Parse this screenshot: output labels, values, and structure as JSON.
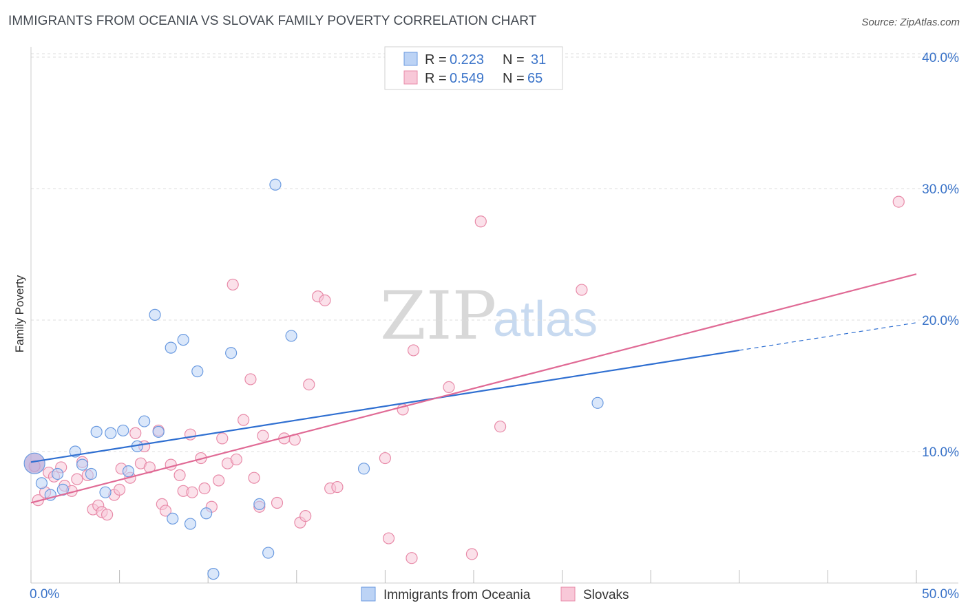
{
  "header": {
    "title": "IMMIGRANTS FROM OCEANIA VS SLOVAK FAMILY POVERTY CORRELATION CHART",
    "source": "Source: ZipAtlas.com"
  },
  "watermark": {
    "zip": "ZIP",
    "atlas": "atlas"
  },
  "legend": {
    "r_label": "R =",
    "n_label": "N =",
    "entries": [
      {
        "r": "0.223",
        "n": "31"
      },
      {
        "r": "0.549",
        "n": "65"
      }
    ]
  },
  "bottom_legend": [
    "Immigrants from Oceania",
    "Slovaks"
  ],
  "colors": {
    "blue_fill": "#bcd3f5",
    "blue_stroke": "#6a9ae0",
    "blue_line": "#2f6fd1",
    "pink_fill": "#f8c8d8",
    "pink_stroke": "#e88aa8",
    "pink_line": "#e06a95",
    "grid": "#dddddd",
    "tick_text": "#3b74c9"
  },
  "chart_data": {
    "type": "scatter",
    "title": "IMMIGRANTS FROM OCEANIA VS SLOVAK FAMILY POVERTY CORRELATION CHART",
    "xlabel": "",
    "ylabel": "Family Poverty",
    "xlim": [
      0,
      50
    ],
    "ylim": [
      0,
      42
    ],
    "x_tick_labels": [
      "0.0%",
      "50.0%"
    ],
    "y_ticks": [
      10,
      20,
      30,
      40
    ],
    "y_tick_labels": [
      "10.0%",
      "20.0%",
      "30.0%",
      "40.0%"
    ],
    "grid": true,
    "series": [
      {
        "name": "Immigrants from Oceania",
        "r": 0.223,
        "n": 31,
        "trend": {
          "x0": 0,
          "y0": 9.2,
          "x1": 40,
          "y1": 17.7,
          "dashed_to_x": 50,
          "dashed_to_y": 19.8
        },
        "points": [
          [
            0.2,
            9.1
          ],
          [
            0.6,
            7.6
          ],
          [
            1.1,
            6.7
          ],
          [
            1.5,
            8.3
          ],
          [
            1.8,
            7.1
          ],
          [
            2.5,
            10.0
          ],
          [
            2.9,
            9.0
          ],
          [
            3.4,
            8.3
          ],
          [
            3.7,
            11.5
          ],
          [
            4.2,
            6.9
          ],
          [
            4.5,
            11.4
          ],
          [
            5.2,
            11.6
          ],
          [
            5.5,
            8.5
          ],
          [
            6.0,
            10.4
          ],
          [
            6.4,
            12.3
          ],
          [
            7.0,
            20.4
          ],
          [
            7.2,
            11.5
          ],
          [
            7.9,
            17.9
          ],
          [
            8.0,
            4.9
          ],
          [
            8.6,
            18.5
          ],
          [
            9.0,
            4.5
          ],
          [
            9.4,
            16.1
          ],
          [
            9.9,
            5.3
          ],
          [
            10.3,
            0.7
          ],
          [
            11.3,
            17.5
          ],
          [
            12.9,
            6.0
          ],
          [
            13.4,
            2.3
          ],
          [
            13.8,
            30.3
          ],
          [
            14.7,
            18.8
          ],
          [
            18.8,
            8.7
          ],
          [
            32.0,
            13.7
          ]
        ]
      },
      {
        "name": "Slovaks",
        "r": 0.549,
        "n": 65,
        "trend": {
          "x0": 0,
          "y0": 6.1,
          "x1": 50,
          "y1": 23.5
        },
        "points": [
          [
            0.2,
            8.9
          ],
          [
            0.4,
            6.3
          ],
          [
            0.8,
            6.9
          ],
          [
            1.0,
            8.4
          ],
          [
            1.3,
            8.1
          ],
          [
            1.7,
            8.8
          ],
          [
            1.9,
            7.4
          ],
          [
            2.3,
            7.0
          ],
          [
            2.6,
            7.9
          ],
          [
            2.9,
            9.2
          ],
          [
            3.2,
            8.2
          ],
          [
            3.5,
            5.6
          ],
          [
            3.8,
            5.9
          ],
          [
            4.0,
            5.4
          ],
          [
            4.3,
            5.2
          ],
          [
            4.7,
            6.7
          ],
          [
            5.0,
            7.1
          ],
          [
            5.1,
            8.7
          ],
          [
            5.6,
            8.0
          ],
          [
            5.9,
            11.4
          ],
          [
            6.2,
            9.1
          ],
          [
            6.4,
            10.4
          ],
          [
            6.7,
            8.8
          ],
          [
            7.2,
            11.6
          ],
          [
            7.4,
            6.0
          ],
          [
            7.6,
            5.5
          ],
          [
            7.9,
            9.0
          ],
          [
            8.4,
            8.2
          ],
          [
            8.6,
            7.0
          ],
          [
            9.0,
            11.3
          ],
          [
            9.1,
            6.9
          ],
          [
            9.6,
            9.5
          ],
          [
            9.8,
            7.2
          ],
          [
            10.2,
            5.8
          ],
          [
            10.6,
            7.8
          ],
          [
            10.8,
            11.0
          ],
          [
            11.1,
            9.1
          ],
          [
            11.4,
            22.7
          ],
          [
            11.6,
            9.4
          ],
          [
            12.0,
            12.4
          ],
          [
            12.4,
            15.5
          ],
          [
            12.6,
            8.0
          ],
          [
            12.9,
            5.8
          ],
          [
            13.1,
            11.2
          ],
          [
            13.9,
            6.1
          ],
          [
            14.3,
            11.0
          ],
          [
            14.9,
            10.9
          ],
          [
            15.2,
            4.6
          ],
          [
            15.5,
            5.1
          ],
          [
            15.7,
            15.1
          ],
          [
            16.2,
            21.8
          ],
          [
            16.6,
            21.5
          ],
          [
            16.9,
            7.2
          ],
          [
            17.3,
            7.3
          ],
          [
            20.0,
            9.5
          ],
          [
            20.2,
            3.4
          ],
          [
            21.0,
            13.2
          ],
          [
            21.5,
            1.9
          ],
          [
            21.6,
            17.7
          ],
          [
            23.6,
            14.9
          ],
          [
            24.9,
            2.2
          ],
          [
            25.4,
            27.5
          ],
          [
            26.5,
            11.9
          ],
          [
            31.1,
            22.3
          ],
          [
            49.0,
            29.0
          ]
        ]
      }
    ]
  }
}
